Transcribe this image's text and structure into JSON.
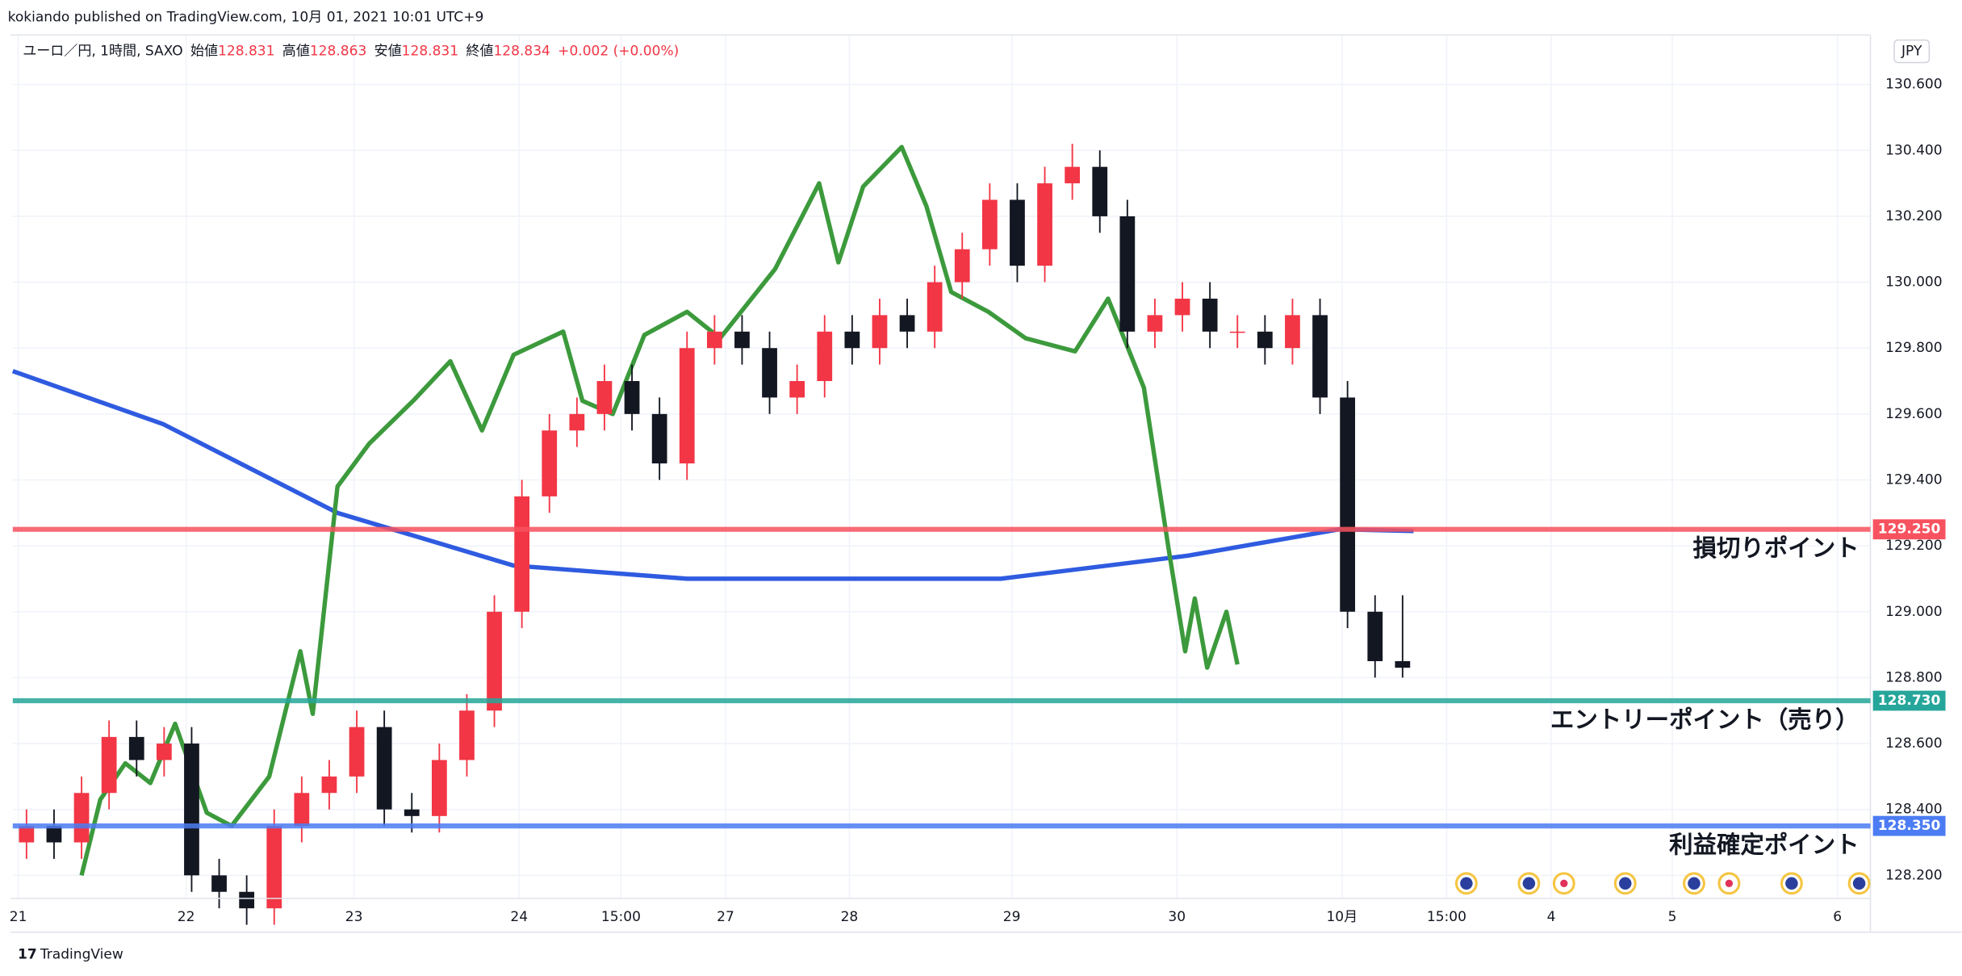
{
  "header": "kokiando published on TradingView.com, 10月 01, 2021 10:01 UTC+9",
  "footer": "TradingView",
  "chart_data": {
    "type": "candlestick",
    "currency": "JPY",
    "legend": {
      "symbol": "ユーロ／円, 1時間, SAXO",
      "items": [
        {
          "label": "始値",
          "value": 128.831
        },
        {
          "label": "高値",
          "value": 128.863
        },
        {
          "label": "安値",
          "value": 128.831
        },
        {
          "label": "終値",
          "value": 128.834
        }
      ],
      "change": "+0.002 (+0.00%)"
    },
    "up_color": "#f23645",
    "down_color": "#131722",
    "open": [
      128.3,
      128.35,
      128.3,
      128.45,
      128.62,
      128.55,
      128.6,
      128.2,
      128.15,
      128.1,
      128.35,
      128.45,
      128.5,
      128.65,
      128.4,
      128.38,
      128.55,
      128.7,
      129.0,
      129.35,
      129.55,
      129.6,
      129.7,
      129.6,
      129.45,
      129.8,
      129.85,
      129.8,
      129.65,
      129.7,
      129.85,
      129.8,
      129.9,
      129.85,
      130.0,
      130.1,
      130.25,
      130.05,
      130.3,
      130.35,
      130.2,
      129.85,
      129.9,
      129.95,
      129.85,
      129.85,
      129.8,
      129.9,
      129.65,
      129.0,
      128.85
    ],
    "high": [
      128.4,
      128.4,
      128.5,
      128.67,
      128.67,
      128.65,
      128.65,
      128.25,
      128.2,
      128.4,
      128.5,
      128.55,
      128.7,
      128.7,
      128.45,
      128.6,
      128.75,
      129.05,
      129.4,
      129.6,
      129.65,
      129.75,
      129.75,
      129.65,
      129.85,
      129.9,
      129.9,
      129.85,
      129.75,
      129.9,
      129.9,
      129.95,
      129.95,
      130.05,
      130.15,
      130.3,
      130.3,
      130.35,
      130.42,
      130.4,
      130.25,
      129.95,
      130.0,
      130.0,
      129.9,
      129.9,
      129.95,
      129.95,
      129.7,
      129.05,
      129.05
    ],
    "low": [
      128.25,
      128.25,
      128.25,
      128.4,
      128.5,
      128.5,
      128.15,
      128.1,
      128.05,
      128.05,
      128.3,
      128.4,
      128.45,
      128.35,
      128.33,
      128.33,
      128.5,
      128.65,
      128.95,
      129.3,
      129.5,
      129.55,
      129.55,
      129.4,
      129.4,
      129.75,
      129.75,
      129.6,
      129.6,
      129.65,
      129.75,
      129.75,
      129.8,
      129.8,
      129.95,
      130.05,
      130.0,
      130.0,
      130.25,
      130.15,
      129.8,
      129.8,
      129.85,
      129.8,
      129.8,
      129.75,
      129.75,
      129.6,
      128.95,
      128.8,
      128.8
    ],
    "close": [
      128.35,
      128.3,
      128.45,
      128.62,
      128.55,
      128.6,
      128.2,
      128.15,
      128.1,
      128.35,
      128.45,
      128.5,
      128.65,
      128.4,
      128.38,
      128.55,
      128.7,
      129.0,
      129.35,
      129.55,
      129.6,
      129.7,
      129.6,
      129.45,
      129.8,
      129.85,
      129.8,
      129.65,
      129.7,
      129.85,
      129.8,
      129.9,
      129.85,
      130.0,
      130.1,
      130.25,
      130.05,
      130.3,
      130.35,
      130.2,
      129.85,
      129.9,
      129.95,
      129.85,
      129.85,
      129.8,
      129.9,
      129.65,
      129.0,
      128.85,
      128.83
    ],
    "lines": [
      {
        "color": "#2f5be0",
        "x": [
          0,
          5.45,
          11.8,
          18.2,
          24.5,
          35.9,
          42.7,
          48.2,
          50.9
        ],
        "values": [
          129.73,
          129.57,
          129.3,
          129.14,
          129.1,
          129.1,
          129.17,
          129.25,
          129.245
        ]
      },
      {
        "color": "#3c9a3c",
        "x": [
          2.5,
          3.18,
          4.09,
          5.0,
          5.9,
          7.05,
          7.95,
          9.32,
          10.45,
          10.9,
          11.8,
          12.95,
          14.55,
          15.9,
          17.05,
          18.2,
          20.0,
          20.7,
          21.8,
          22.95,
          24.5,
          25.7,
          27.7,
          29.3,
          30.0,
          30.9,
          32.3,
          33.2,
          34.1,
          35.45,
          36.8,
          38.6,
          39.8,
          41.1,
          42.0,
          42.6,
          42.95,
          43.4,
          44.1,
          44.5
        ],
        "values": [
          128.2,
          128.43,
          128.54,
          128.48,
          128.66,
          128.39,
          128.35,
          128.5,
          128.88,
          128.69,
          129.38,
          129.51,
          129.64,
          129.76,
          129.55,
          129.78,
          129.85,
          129.64,
          129.6,
          129.84,
          129.91,
          129.83,
          130.04,
          130.3,
          130.06,
          130.29,
          130.41,
          130.23,
          129.97,
          129.91,
          129.83,
          129.79,
          129.95,
          129.68,
          129.19,
          128.88,
          129.04,
          128.83,
          129.0,
          128.84
        ]
      }
    ],
    "levels": [
      {
        "value": 129.25,
        "value_label": "129.250",
        "label": "損切りポイント",
        "color": "#f7525f"
      },
      {
        "value": 128.73,
        "value_label": "128.730",
        "label": "エントリーポイント（売り）",
        "color": "#26a69a"
      },
      {
        "value": 128.35,
        "value_label": "128.350",
        "label": "利益確定ポイント",
        "color": "#4c7cf3"
      }
    ],
    "xlim": [
      0,
      67.5
    ],
    "xticks": [
      {
        "value": 0.2,
        "label": "21"
      },
      {
        "value": 6.3,
        "label": "22"
      },
      {
        "value": 12.4,
        "label": "23"
      },
      {
        "value": 18.4,
        "label": "24"
      },
      {
        "value": 22.1,
        "label": "15:00"
      },
      {
        "value": 25.9,
        "label": "27"
      },
      {
        "value": 30.4,
        "label": "28"
      },
      {
        "value": 36.3,
        "label": "29"
      },
      {
        "value": 42.3,
        "label": "30"
      },
      {
        "value": 48.3,
        "label": "10月"
      },
      {
        "value": 52.1,
        "label": "15:00"
      },
      {
        "value": 55.9,
        "label": "4"
      },
      {
        "value": 60.3,
        "label": "5"
      },
      {
        "value": 66.3,
        "label": "6"
      }
    ],
    "ylim": [
      128.13,
      130.75
    ],
    "yticks": [
      {
        "value": 128.2,
        "label": "128.200"
      },
      {
        "value": 128.4,
        "label": "128.400"
      },
      {
        "value": 128.6,
        "label": "128.600"
      },
      {
        "value": 128.8,
        "label": "128.800"
      },
      {
        "value": 129.0,
        "label": "129.000"
      },
      {
        "value": 129.2,
        "label": "129.200"
      },
      {
        "value": 129.4,
        "label": "129.400"
      },
      {
        "value": 129.6,
        "label": "129.600"
      },
      {
        "value": 129.8,
        "label": "129.800"
      },
      {
        "value": 130.0,
        "label": "130.000"
      },
      {
        "value": 130.2,
        "label": "130.200"
      },
      {
        "value": 130.4,
        "label": "130.400"
      },
      {
        "value": 130.6,
        "label": "130.600"
      }
    ],
    "grid": true
  }
}
